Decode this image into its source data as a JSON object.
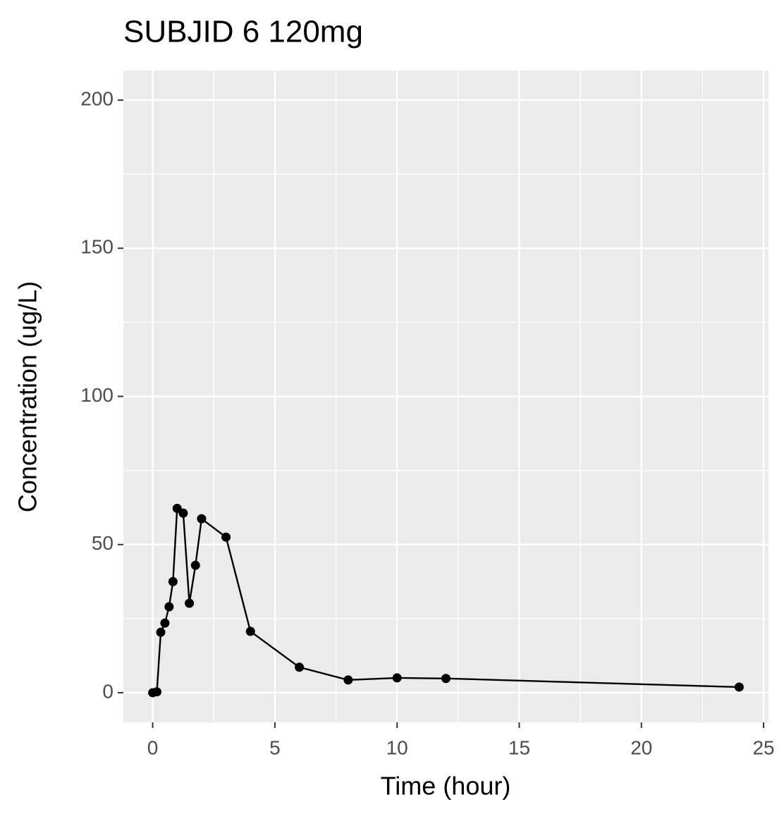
{
  "chart_data": {
    "type": "line",
    "title": "SUBJID 6 120mg",
    "x_label": "Time (hour)",
    "y_label": "Concentration (ug/L)",
    "x": [
      0,
      0.17,
      0.33,
      0.5,
      0.67,
      0.83,
      1,
      1.25,
      1.5,
      1.75,
      2,
      3,
      4,
      6,
      8,
      10,
      12,
      24
    ],
    "series": [
      {
        "color": "#000000",
        "values": [
          0,
          0.3,
          20.4,
          23.5,
          29.0,
          37.5,
          62.2,
          60.6,
          30.2,
          43.0,
          58.7,
          52.5,
          20.7,
          8.6,
          4.3,
          5.0,
          4.8,
          1.9
        ]
      }
    ],
    "xlim": [
      -1.2,
      25.2
    ],
    "xticks": [
      0,
      5,
      10,
      15,
      20,
      25
    ],
    "ylim": [
      -10,
      210
    ],
    "yticks": [
      0,
      50,
      100,
      150,
      200
    ],
    "grid": true
  }
}
